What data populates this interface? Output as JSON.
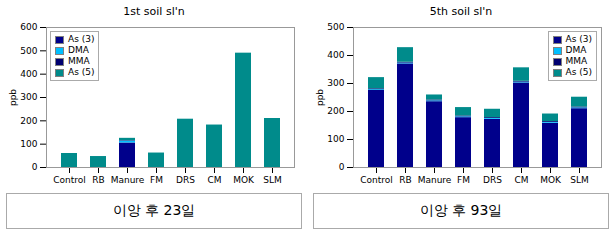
{
  "chart_data": [
    {
      "type": "bar",
      "stacked": true,
      "title": "1st soil sl'n",
      "categories": [
        "Control",
        "RB",
        "Manure",
        "FM",
        "DRS",
        "CM",
        "MOK",
        "SLM"
      ],
      "series": [
        {
          "name": "As (3)",
          "color": "#00008B",
          "values": [
            0,
            0,
            105,
            0,
            0,
            0,
            0,
            0
          ]
        },
        {
          "name": "DMA",
          "color": "#00BFFF",
          "values": [
            0,
            0,
            8,
            0,
            0,
            0,
            0,
            0
          ]
        },
        {
          "name": "MMA",
          "color": "#000070",
          "values": [
            0,
            0,
            2,
            0,
            0,
            0,
            0,
            0
          ]
        },
        {
          "name": "As (5)",
          "color": "#008B8B",
          "values": [
            60,
            47,
            10,
            62,
            207,
            182,
            490,
            210
          ]
        }
      ],
      "ylabel": "ppb",
      "ylim": [
        0,
        600
      ],
      "yticks": [
        0,
        100,
        200,
        300,
        400,
        500,
        600
      ],
      "legend": "upper left",
      "annotations": [
        "이앙 후 23일"
      ]
    },
    {
      "type": "bar",
      "stacked": true,
      "title": "5th soil sl'n",
      "categories": [
        "Control",
        "RB",
        "Manure",
        "FM",
        "DRS",
        "CM",
        "MOK",
        "SLM"
      ],
      "series": [
        {
          "name": "As (3)",
          "color": "#00008B",
          "values": [
            275,
            370,
            235,
            178,
            172,
            302,
            158,
            210
          ]
        },
        {
          "name": "DMA",
          "color": "#00BFFF",
          "values": [
            3,
            3,
            3,
            3,
            3,
            3,
            3,
            3
          ]
        },
        {
          "name": "MMA",
          "color": "#000070",
          "values": [
            3,
            3,
            3,
            3,
            3,
            3,
            3,
            3
          ]
        },
        {
          "name": "As (5)",
          "color": "#008B8B",
          "values": [
            40,
            52,
            18,
            30,
            30,
            48,
            27,
            35
          ]
        }
      ],
      "ylabel": "ppb",
      "ylim": [
        0,
        500
      ],
      "yticks": [
        0,
        100,
        200,
        300,
        400,
        500
      ],
      "legend": "upper right",
      "annotations": [
        "이앙 후 93일"
      ]
    }
  ]
}
